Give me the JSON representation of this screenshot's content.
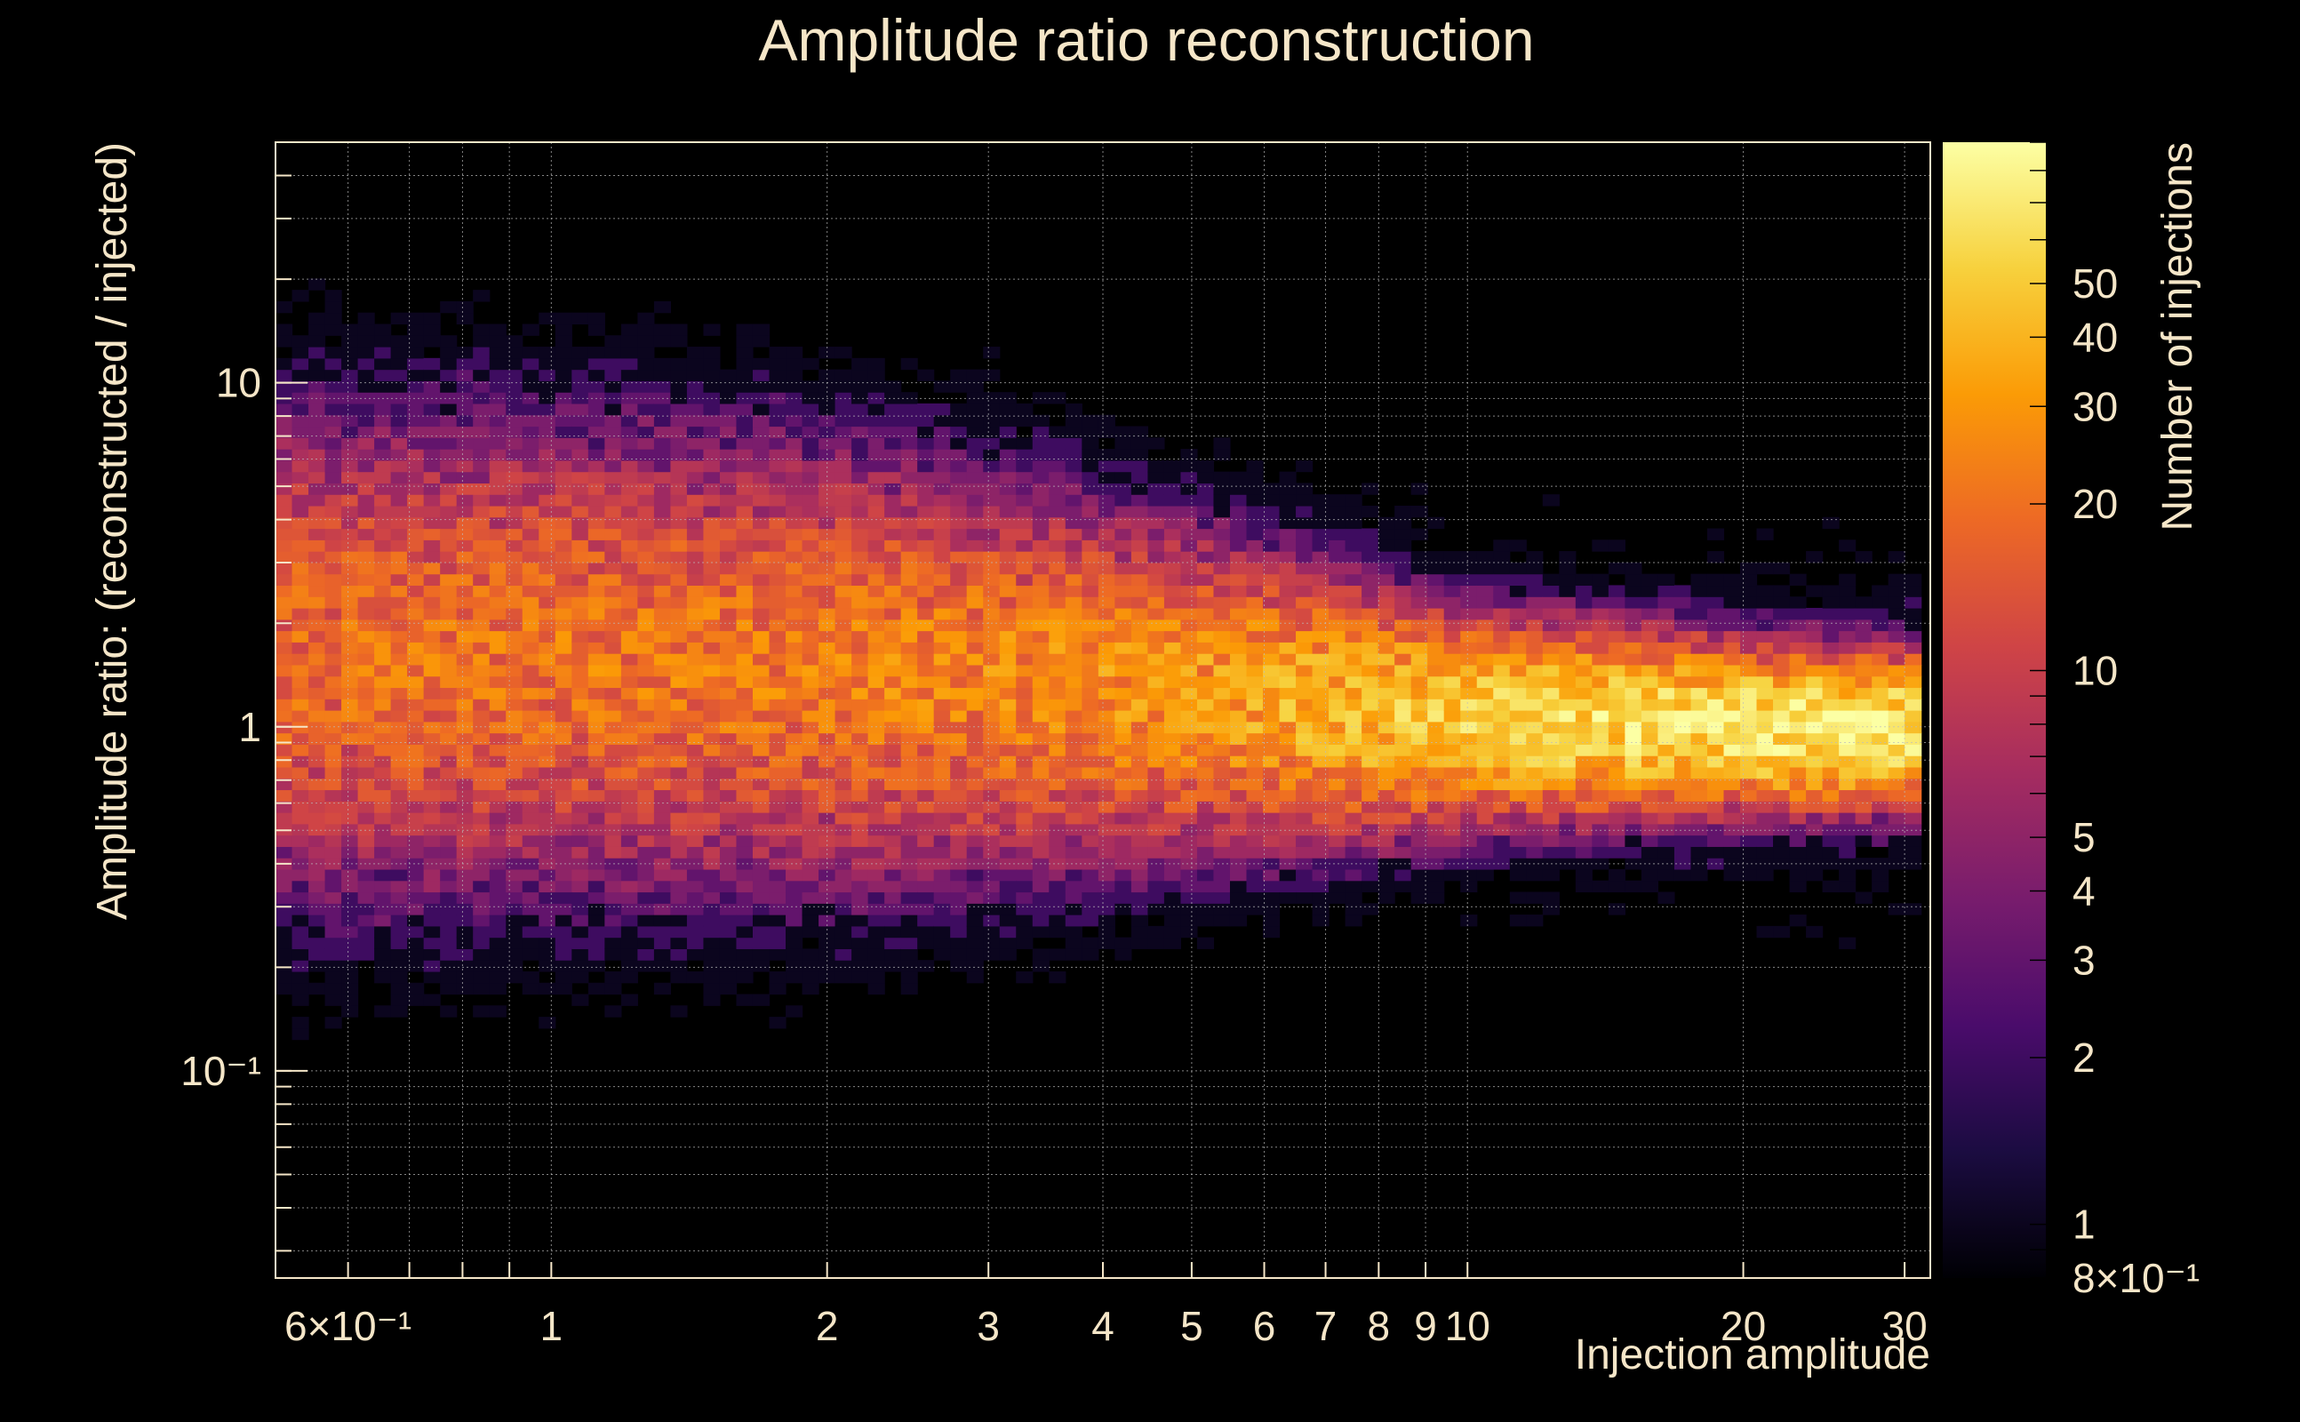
{
  "chart_data": {
    "type": "heatmap",
    "title": "Amplitude ratio  reconstruction",
    "xlabel": "Injection amplitude",
    "ylabel": "Amplitude ratio: (reconstructed / injected)",
    "zlabel": "Number of injections",
    "xscale": "log",
    "yscale": "log",
    "zscale": "log",
    "xlim": [
      0.5,
      32
    ],
    "ylim": [
      0.025,
      50
    ],
    "zlim": [
      0.8,
      90
    ],
    "grid": true,
    "colormap": [
      "#000004",
      "#1b0c41",
      "#4a0c6b",
      "#781c6d",
      "#a52c60",
      "#cf4446",
      "#ed6925",
      "#fb9b06",
      "#f7d13d",
      "#fcffa4"
    ],
    "x_ticks": [
      {
        "value": 0.6,
        "label": "6×10⁻¹"
      },
      {
        "value": 1,
        "label": "1"
      },
      {
        "value": 2,
        "label": "2"
      },
      {
        "value": 3,
        "label": "3"
      },
      {
        "value": 4,
        "label": "4"
      },
      {
        "value": 5,
        "label": "5"
      },
      {
        "value": 6,
        "label": "6"
      },
      {
        "value": 7,
        "label": "7"
      },
      {
        "value": 8,
        "label": "8"
      },
      {
        "value": 9,
        "label": "9"
      },
      {
        "value": 10,
        "label": "10"
      },
      {
        "value": 20,
        "label": "20"
      },
      {
        "value": 30,
        "label": "30"
      }
    ],
    "y_ticks": [
      {
        "value": 0.1,
        "label": "10⁻¹"
      },
      {
        "value": 1,
        "label": "1"
      },
      {
        "value": 10,
        "label": "10"
      }
    ],
    "z_ticks": [
      {
        "value": 0.8,
        "label": "8×10⁻¹"
      },
      {
        "value": 1,
        "label": "1"
      },
      {
        "value": 2,
        "label": "2"
      },
      {
        "value": 3,
        "label": "3"
      },
      {
        "value": 4,
        "label": "4"
      },
      {
        "value": 5,
        "label": "5"
      },
      {
        "value": 10,
        "label": "10"
      },
      {
        "value": 20,
        "label": "20"
      },
      {
        "value": 30,
        "label": "30"
      },
      {
        "value": 40,
        "label": "40"
      },
      {
        "value": 50,
        "label": "50"
      }
    ],
    "band_profile": [
      {
        "x": 0.55,
        "center_ratio": 1.6,
        "log10_width": 0.38,
        "peak_count": 18
      },
      {
        "x": 1,
        "center_ratio": 1.6,
        "log10_width": 0.36,
        "peak_count": 20
      },
      {
        "x": 2,
        "center_ratio": 1.5,
        "log10_width": 0.34,
        "peak_count": 22
      },
      {
        "x": 3,
        "center_ratio": 1.4,
        "log10_width": 0.3,
        "peak_count": 24
      },
      {
        "x": 5,
        "center_ratio": 1.25,
        "log10_width": 0.24,
        "peak_count": 30
      },
      {
        "x": 8,
        "center_ratio": 1.1,
        "log10_width": 0.18,
        "peak_count": 45
      },
      {
        "x": 10,
        "center_ratio": 1.05,
        "log10_width": 0.15,
        "peak_count": 55
      },
      {
        "x": 20,
        "center_ratio": 1.0,
        "log10_width": 0.12,
        "peak_count": 70
      },
      {
        "x": 30,
        "center_ratio": 0.98,
        "log10_width": 0.11,
        "peak_count": 75
      }
    ],
    "bins": {
      "x": 100,
      "y": 100
    }
  }
}
